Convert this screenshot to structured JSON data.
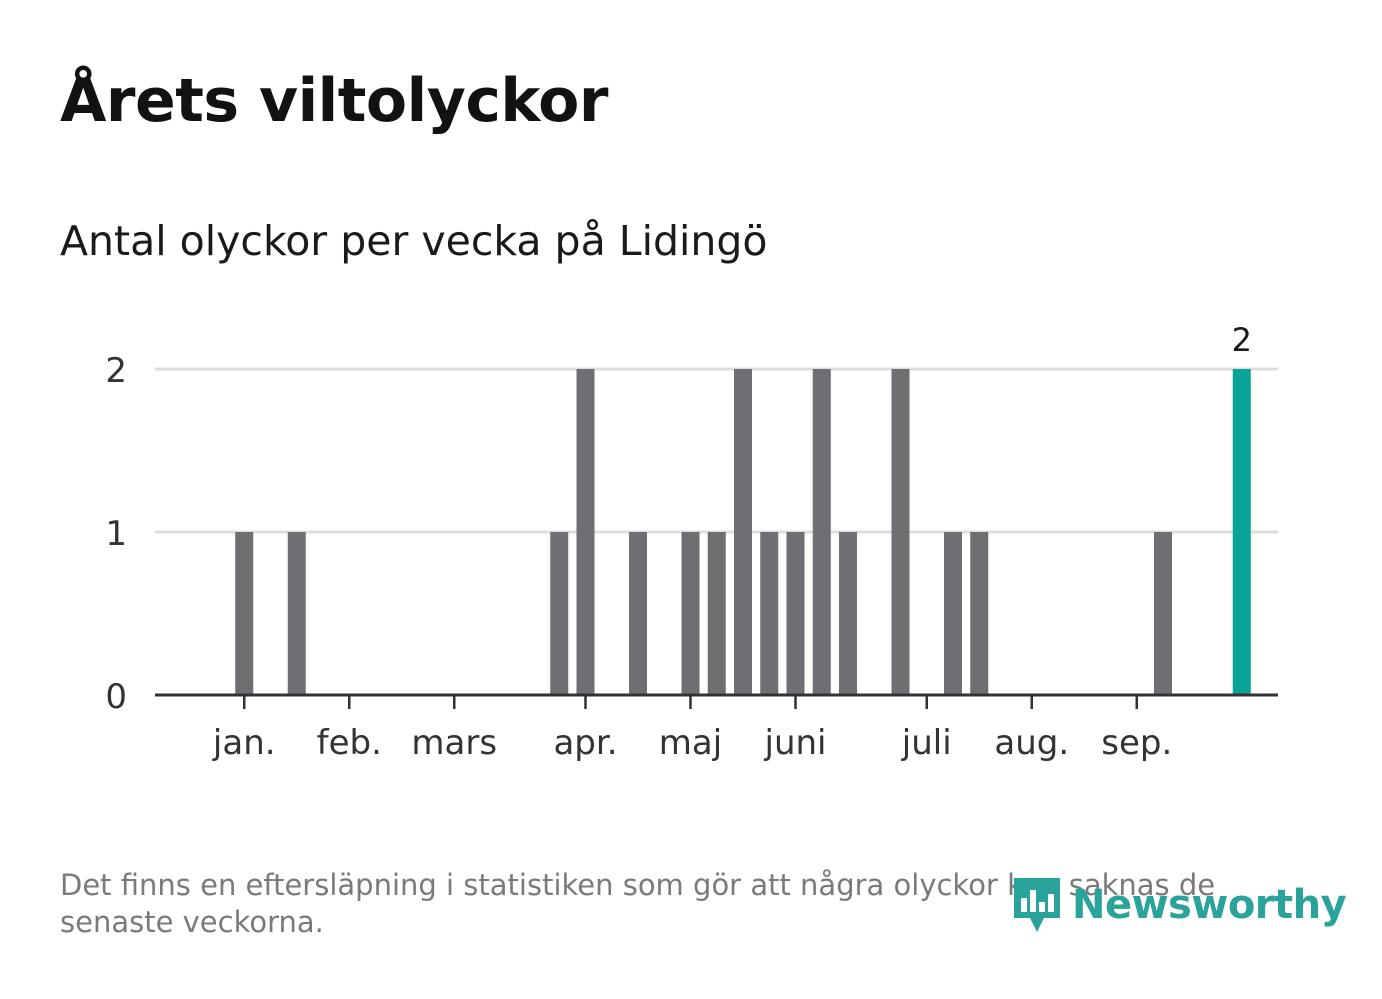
{
  "title": "Årets viltolyckor",
  "subtitle": "Antal olyckor per vecka på Lidingö",
  "footnote": "Det finns en eftersläpning i statistiken som gör att några olyckor kan saknas de senaste veckorna.",
  "brand": {
    "name": "Newsworthy",
    "icon": "bar-chart-speech-bubble-icon"
  },
  "colors": {
    "bar": "#6f6e73",
    "highlight": "#07a497",
    "grid": "#dddddd",
    "axis": "#333333",
    "brand": "#2aa39a"
  },
  "chart_data": {
    "type": "bar",
    "title": "Antal olyckor per vecka på Lidingö",
    "xlabel": "",
    "ylabel": "",
    "ylim": [
      0,
      2
    ],
    "yticks": [
      0,
      1,
      2
    ],
    "x_unit": "week",
    "weeks": [
      1,
      2,
      3,
      4,
      5,
      6,
      7,
      8,
      9,
      10,
      11,
      12,
      13,
      14,
      15,
      16,
      17,
      18,
      19,
      20,
      21,
      22,
      23,
      24,
      25,
      26,
      27,
      28,
      29,
      30,
      31,
      32,
      33,
      34,
      35,
      36,
      37,
      38,
      39,
      40
    ],
    "values": [
      0,
      1,
      0,
      1,
      0,
      0,
      0,
      0,
      0,
      0,
      0,
      0,
      0,
      1,
      2,
      0,
      1,
      0,
      1,
      1,
      2,
      1,
      1,
      2,
      1,
      0,
      2,
      0,
      1,
      1,
      0,
      0,
      0,
      0,
      0,
      0,
      1,
      0,
      0,
      2
    ],
    "highlight_week": 40,
    "highlight_label": "2",
    "month_ticks": [
      {
        "label": "jan.",
        "week": 2
      },
      {
        "label": "feb.",
        "week": 6
      },
      {
        "label": "mars",
        "week": 10
      },
      {
        "label": "apr.",
        "week": 15
      },
      {
        "label": "maj",
        "week": 19
      },
      {
        "label": "juni",
        "week": 23
      },
      {
        "label": "juli",
        "week": 28
      },
      {
        "label": "aug.",
        "week": 32
      },
      {
        "label": "sep.",
        "week": 36
      }
    ]
  }
}
